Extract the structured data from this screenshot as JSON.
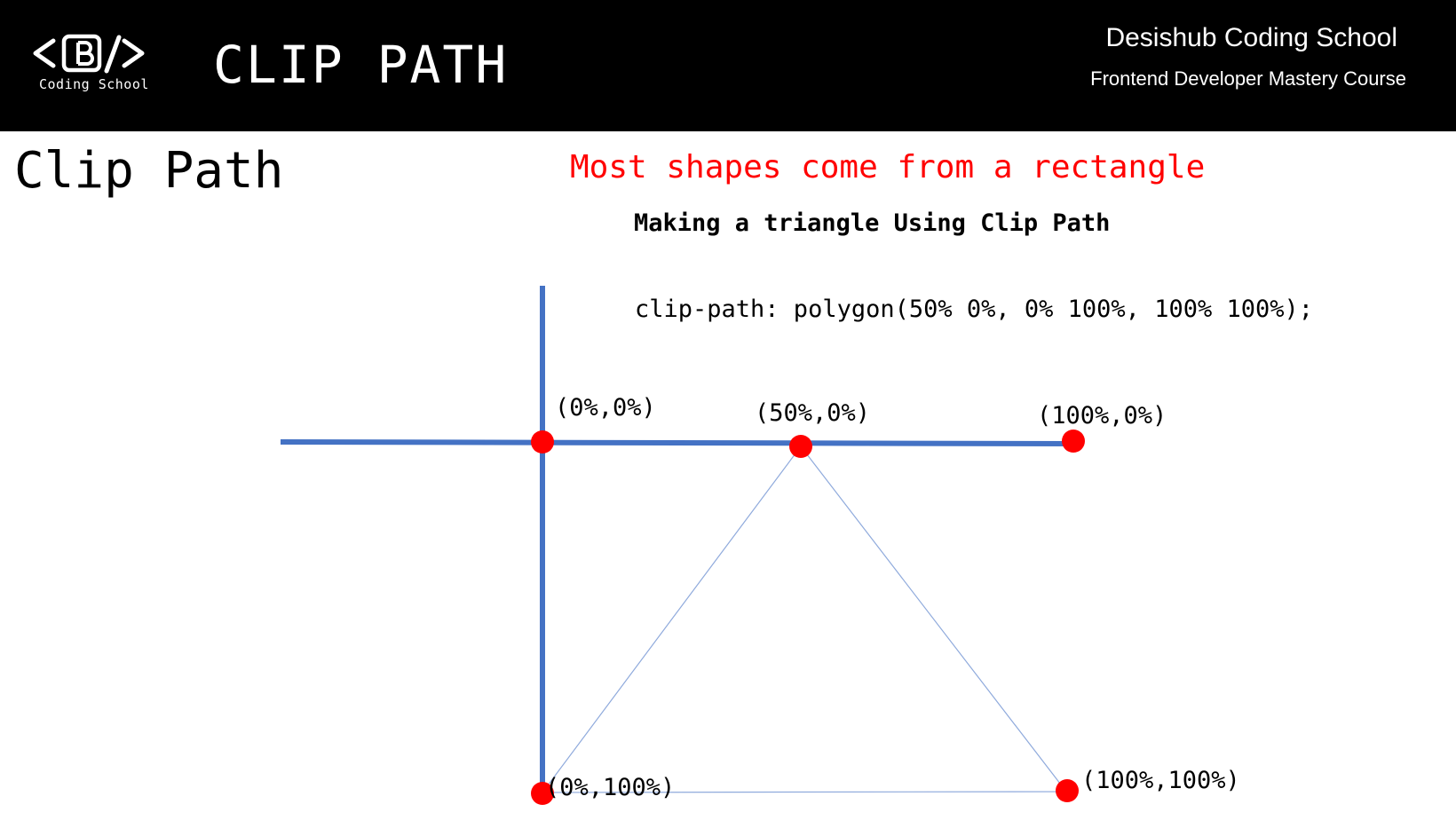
{
  "header": {
    "logo_text": "Coding School",
    "title": "CLIP PATH",
    "school_name": "Desishub Coding School",
    "course_name": "Frontend Developer Mastery Course"
  },
  "slide": {
    "title": "Clip Path",
    "headline": "Most shapes come from a rectangle",
    "subheading": "Making a triangle Using Clip Path",
    "code": "clip-path: polygon(50% 0%, 0% 100%, 100% 100%);"
  },
  "diagram": {
    "points": [
      {
        "id": "top-left",
        "label": "(0%,0%)"
      },
      {
        "id": "top-center",
        "label": "(50%,0%)"
      },
      {
        "id": "top-right",
        "label": "(100%,0%)"
      },
      {
        "id": "bottom-left",
        "label": "(0%,100%)"
      },
      {
        "id": "bottom-right",
        "label": "(100%,100%)"
      }
    ],
    "colors": {
      "axis": "#4472c4",
      "triangle": "#8faadc",
      "point": "#ff0000",
      "headline": "#ff0000"
    }
  }
}
